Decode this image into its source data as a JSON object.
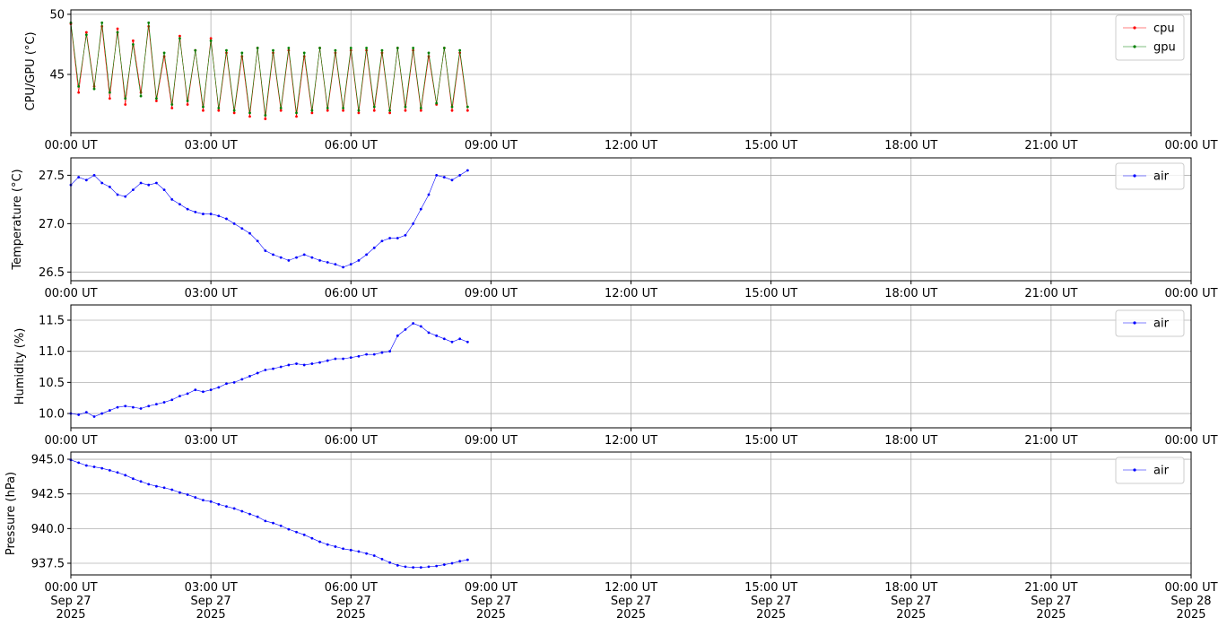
{
  "chart_data": [
    {
      "type": "line",
      "ylabel": "CPU/GPU (°C)",
      "x": [
        "2025-09-27T00:00",
        "2025-09-27T00:10",
        "2025-09-27T00:20",
        "2025-09-27T00:30",
        "2025-09-27T00:40",
        "2025-09-27T00:50",
        "2025-09-27T01:00",
        "2025-09-27T01:10",
        "2025-09-27T01:20",
        "2025-09-27T01:30",
        "2025-09-27T01:40",
        "2025-09-27T01:50",
        "2025-09-27T02:00",
        "2025-09-27T02:10",
        "2025-09-27T02:20",
        "2025-09-27T02:30",
        "2025-09-27T02:40",
        "2025-09-27T02:50",
        "2025-09-27T03:00",
        "2025-09-27T03:10",
        "2025-09-27T03:20",
        "2025-09-27T03:30",
        "2025-09-27T03:40",
        "2025-09-27T03:50",
        "2025-09-27T04:00",
        "2025-09-27T04:10",
        "2025-09-27T04:20",
        "2025-09-27T04:30",
        "2025-09-27T04:40",
        "2025-09-27T04:50",
        "2025-09-27T05:00",
        "2025-09-27T05:10",
        "2025-09-27T05:20",
        "2025-09-27T05:30",
        "2025-09-27T05:40",
        "2025-09-27T05:50",
        "2025-09-27T06:00",
        "2025-09-27T06:10",
        "2025-09-27T06:20",
        "2025-09-27T06:30",
        "2025-09-27T06:40",
        "2025-09-27T06:50",
        "2025-09-27T07:00",
        "2025-09-27T07:10",
        "2025-09-27T07:20",
        "2025-09-27T07:30",
        "2025-09-27T07:40",
        "2025-09-27T07:50",
        "2025-09-27T08:00",
        "2025-09-27T08:10",
        "2025-09-27T08:20",
        "2025-09-27T08:30"
      ],
      "series": [
        {
          "name": "cpu",
          "color": "#ff0000",
          "values": [
            49.2,
            43.5,
            48.5,
            44.0,
            49.0,
            43.0,
            48.8,
            42.5,
            47.8,
            43.5,
            49.0,
            42.8,
            46.5,
            42.2,
            48.2,
            42.5,
            47.0,
            42.0,
            48.0,
            42.0,
            46.8,
            41.8,
            46.5,
            41.5,
            47.2,
            41.3,
            46.8,
            42.0,
            47.0,
            41.5,
            46.5,
            41.8,
            47.2,
            42.0,
            46.8,
            42.0,
            47.0,
            41.8,
            47.0,
            42.0,
            46.8,
            41.8,
            47.2,
            42.0,
            47.0,
            42.0,
            46.5,
            42.5,
            47.2,
            42.0,
            46.8,
            42.0
          ]
        },
        {
          "name": "gpu",
          "color": "#008000",
          "values": [
            49.3,
            44.0,
            48.3,
            43.8,
            49.3,
            43.5,
            48.5,
            43.0,
            47.5,
            43.2,
            49.3,
            43.0,
            46.8,
            42.5,
            48.0,
            42.8,
            47.0,
            42.3,
            47.8,
            42.2,
            47.0,
            42.0,
            46.8,
            41.8,
            47.2,
            41.6,
            47.0,
            42.2,
            47.2,
            41.8,
            46.8,
            42.0,
            47.2,
            42.2,
            47.0,
            42.2,
            47.2,
            42.0,
            47.2,
            42.3,
            47.0,
            42.0,
            47.2,
            42.3,
            47.2,
            42.2,
            46.8,
            42.6,
            47.2,
            42.3,
            47.0,
            42.3
          ]
        }
      ],
      "xlim": [
        "2025-09-27T00:00",
        "2025-09-28T00:00"
      ],
      "xticks": [
        {
          "value": "2025-09-27T00:00",
          "label": "00:00 UT"
        },
        {
          "value": "2025-09-27T03:00",
          "label": "03:00 UT"
        },
        {
          "value": "2025-09-27T06:00",
          "label": "06:00 UT"
        },
        {
          "value": "2025-09-27T09:00",
          "label": "09:00 UT"
        },
        {
          "value": "2025-09-27T12:00",
          "label": "12:00 UT"
        },
        {
          "value": "2025-09-27T15:00",
          "label": "15:00 UT"
        },
        {
          "value": "2025-09-27T18:00",
          "label": "18:00 UT"
        },
        {
          "value": "2025-09-27T21:00",
          "label": "21:00 UT"
        },
        {
          "value": "2025-09-28T00:00",
          "label": "00:00 UT"
        }
      ],
      "ylim": [
        40.15,
        50.37
      ],
      "yticks": [
        45,
        50
      ],
      "grid": true,
      "legend": "upper right"
    },
    {
      "type": "line",
      "ylabel": "Temperature (°C)",
      "x": [
        "2025-09-27T00:00",
        "2025-09-27T00:10",
        "2025-09-27T00:20",
        "2025-09-27T00:30",
        "2025-09-27T00:40",
        "2025-09-27T00:50",
        "2025-09-27T01:00",
        "2025-09-27T01:10",
        "2025-09-27T01:20",
        "2025-09-27T01:30",
        "2025-09-27T01:40",
        "2025-09-27T01:50",
        "2025-09-27T02:00",
        "2025-09-27T02:10",
        "2025-09-27T02:20",
        "2025-09-27T02:30",
        "2025-09-27T02:40",
        "2025-09-27T02:50",
        "2025-09-27T03:00",
        "2025-09-27T03:10",
        "2025-09-27T03:20",
        "2025-09-27T03:30",
        "2025-09-27T03:40",
        "2025-09-27T03:50",
        "2025-09-27T04:00",
        "2025-09-27T04:10",
        "2025-09-27T04:20",
        "2025-09-27T04:30",
        "2025-09-27T04:40",
        "2025-09-27T04:50",
        "2025-09-27T05:00",
        "2025-09-27T05:10",
        "2025-09-27T05:20",
        "2025-09-27T05:30",
        "2025-09-27T05:40",
        "2025-09-27T05:50",
        "2025-09-27T06:00",
        "2025-09-27T06:10",
        "2025-09-27T06:20",
        "2025-09-27T06:30",
        "2025-09-27T06:40",
        "2025-09-27T06:50",
        "2025-09-27T07:00",
        "2025-09-27T07:10",
        "2025-09-27T07:20",
        "2025-09-27T07:30",
        "2025-09-27T07:40",
        "2025-09-27T07:50",
        "2025-09-27T08:00",
        "2025-09-27T08:10",
        "2025-09-27T08:20",
        "2025-09-27T08:30"
      ],
      "series": [
        {
          "name": "air",
          "color": "#0000ff",
          "values": [
            27.4,
            27.48,
            27.45,
            27.5,
            27.42,
            27.38,
            27.3,
            27.28,
            27.35,
            27.42,
            27.4,
            27.42,
            27.35,
            27.25,
            27.2,
            27.15,
            27.12,
            27.1,
            27.1,
            27.08,
            27.05,
            27.0,
            26.95,
            26.9,
            26.82,
            26.72,
            26.68,
            26.65,
            26.62,
            26.65,
            26.68,
            26.65,
            26.62,
            26.6,
            26.58,
            26.55,
            26.58,
            26.62,
            26.68,
            26.75,
            26.82,
            26.85,
            26.85,
            26.88,
            27.0,
            27.15,
            27.3,
            27.5,
            27.48,
            27.45,
            27.5,
            27.55
          ]
        }
      ],
      "xlim": [
        "2025-09-27T00:00",
        "2025-09-28T00:00"
      ],
      "xticks": [
        {
          "value": "2025-09-27T00:00",
          "label": "00:00 UT"
        },
        {
          "value": "2025-09-27T03:00",
          "label": "03:00 UT"
        },
        {
          "value": "2025-09-27T06:00",
          "label": "06:00 UT"
        },
        {
          "value": "2025-09-27T09:00",
          "label": "09:00 UT"
        },
        {
          "value": "2025-09-27T12:00",
          "label": "12:00 UT"
        },
        {
          "value": "2025-09-27T15:00",
          "label": "15:00 UT"
        },
        {
          "value": "2025-09-27T18:00",
          "label": "18:00 UT"
        },
        {
          "value": "2025-09-27T21:00",
          "label": "21:00 UT"
        },
        {
          "value": "2025-09-28T00:00",
          "label": "00:00 UT"
        }
      ],
      "ylim": [
        26.41,
        27.68
      ],
      "yticks": [
        26.5,
        {
          "value": 27,
          "label": "27.0"
        },
        27.5
      ],
      "grid": true,
      "legend": "upper right"
    },
    {
      "type": "line",
      "ylabel": "Humidity (%)",
      "x": [
        "2025-09-27T00:00",
        "2025-09-27T00:10",
        "2025-09-27T00:20",
        "2025-09-27T00:30",
        "2025-09-27T00:40",
        "2025-09-27T00:50",
        "2025-09-27T01:00",
        "2025-09-27T01:10",
        "2025-09-27T01:20",
        "2025-09-27T01:30",
        "2025-09-27T01:40",
        "2025-09-27T01:50",
        "2025-09-27T02:00",
        "2025-09-27T02:10",
        "2025-09-27T02:20",
        "2025-09-27T02:30",
        "2025-09-27T02:40",
        "2025-09-27T02:50",
        "2025-09-27T03:00",
        "2025-09-27T03:10",
        "2025-09-27T03:20",
        "2025-09-27T03:30",
        "2025-09-27T03:40",
        "2025-09-27T03:50",
        "2025-09-27T04:00",
        "2025-09-27T04:10",
        "2025-09-27T04:20",
        "2025-09-27T04:30",
        "2025-09-27T04:40",
        "2025-09-27T04:50",
        "2025-09-27T05:00",
        "2025-09-27T05:10",
        "2025-09-27T05:20",
        "2025-09-27T05:30",
        "2025-09-27T05:40",
        "2025-09-27T05:50",
        "2025-09-27T06:00",
        "2025-09-27T06:10",
        "2025-09-27T06:20",
        "2025-09-27T06:30",
        "2025-09-27T06:40",
        "2025-09-27T06:50",
        "2025-09-27T07:00",
        "2025-09-27T07:10",
        "2025-09-27T07:20",
        "2025-09-27T07:30",
        "2025-09-27T07:40",
        "2025-09-27T07:50",
        "2025-09-27T08:00",
        "2025-09-27T08:10",
        "2025-09-27T08:20",
        "2025-09-27T08:30"
      ],
      "series": [
        {
          "name": "air",
          "color": "#0000ff",
          "values": [
            10.0,
            9.98,
            10.02,
            9.95,
            10.0,
            10.05,
            10.1,
            10.12,
            10.1,
            10.08,
            10.12,
            10.15,
            10.18,
            10.22,
            10.28,
            10.32,
            10.38,
            10.35,
            10.38,
            10.42,
            10.48,
            10.5,
            10.55,
            10.6,
            10.65,
            10.7,
            10.72,
            10.75,
            10.78,
            10.8,
            10.78,
            10.8,
            10.82,
            10.85,
            10.88,
            10.88,
            10.9,
            10.92,
            10.95,
            10.95,
            10.98,
            11.0,
            11.25,
            11.35,
            11.45,
            11.4,
            11.3,
            11.25,
            11.2,
            11.15,
            11.2,
            11.15
          ]
        }
      ],
      "xlim": [
        "2025-09-27T00:00",
        "2025-09-28T00:00"
      ],
      "xticks": [
        {
          "value": "2025-09-27T00:00",
          "label": "00:00 UT"
        },
        {
          "value": "2025-09-27T03:00",
          "label": "03:00 UT"
        },
        {
          "value": "2025-09-27T06:00",
          "label": "06:00 UT"
        },
        {
          "value": "2025-09-27T09:00",
          "label": "09:00 UT"
        },
        {
          "value": "2025-09-27T12:00",
          "label": "12:00 UT"
        },
        {
          "value": "2025-09-27T15:00",
          "label": "15:00 UT"
        },
        {
          "value": "2025-09-27T18:00",
          "label": "18:00 UT"
        },
        {
          "value": "2025-09-27T21:00",
          "label": "21:00 UT"
        },
        {
          "value": "2025-09-28T00:00",
          "label": "00:00 UT"
        }
      ],
      "ylim": [
        9.77,
        11.745
      ],
      "yticks": [
        {
          "value": 10,
          "label": "10.0"
        },
        10.5,
        {
          "value": 11,
          "label": "11.0"
        },
        11.5
      ],
      "grid": true,
      "legend": "upper right"
    },
    {
      "type": "line",
      "ylabel": "Pressure (hPa)",
      "x": [
        "2025-09-27T00:00",
        "2025-09-27T00:10",
        "2025-09-27T00:20",
        "2025-09-27T00:30",
        "2025-09-27T00:40",
        "2025-09-27T00:50",
        "2025-09-27T01:00",
        "2025-09-27T01:10",
        "2025-09-27T01:20",
        "2025-09-27T01:30",
        "2025-09-27T01:40",
        "2025-09-27T01:50",
        "2025-09-27T02:00",
        "2025-09-27T02:10",
        "2025-09-27T02:20",
        "2025-09-27T02:30",
        "2025-09-27T02:40",
        "2025-09-27T02:50",
        "2025-09-27T03:00",
        "2025-09-27T03:10",
        "2025-09-27T03:20",
        "2025-09-27T03:30",
        "2025-09-27T03:40",
        "2025-09-27T03:50",
        "2025-09-27T04:00",
        "2025-09-27T04:10",
        "2025-09-27T04:20",
        "2025-09-27T04:30",
        "2025-09-27T04:40",
        "2025-09-27T04:50",
        "2025-09-27T05:00",
        "2025-09-27T05:10",
        "2025-09-27T05:20",
        "2025-09-27T05:30",
        "2025-09-27T05:40",
        "2025-09-27T05:50",
        "2025-09-27T06:00",
        "2025-09-27T06:10",
        "2025-09-27T06:20",
        "2025-09-27T06:30",
        "2025-09-27T06:40",
        "2025-09-27T06:50",
        "2025-09-27T07:00",
        "2025-09-27T07:10",
        "2025-09-27T07:20",
        "2025-09-27T07:30",
        "2025-09-27T07:40",
        "2025-09-27T07:50",
        "2025-09-27T08:00",
        "2025-09-27T08:10",
        "2025-09-27T08:20",
        "2025-09-27T08:30"
      ],
      "series": [
        {
          "name": "air",
          "color": "#0000ff",
          "values": [
            944.95,
            944.75,
            944.55,
            944.45,
            944.35,
            944.2,
            944.05,
            943.85,
            943.6,
            943.4,
            943.2,
            943.05,
            942.95,
            942.8,
            942.6,
            942.45,
            942.25,
            942.05,
            941.95,
            941.75,
            941.6,
            941.45,
            941.25,
            941.05,
            940.85,
            940.55,
            940.4,
            940.2,
            939.95,
            939.75,
            939.55,
            939.3,
            939.05,
            938.85,
            938.7,
            938.55,
            938.45,
            938.35,
            938.2,
            938.05,
            937.8,
            937.55,
            937.35,
            937.25,
            937.2,
            937.2,
            937.25,
            937.3,
            937.4,
            937.5,
            937.65,
            937.75
          ]
        }
      ],
      "xlim": [
        "2025-09-27T00:00",
        "2025-09-28T00:00"
      ],
      "xticks": [
        {
          "value": "2025-09-27T00:00",
          "label": "00:00 UT\nSep 27\n2025"
        },
        {
          "value": "2025-09-27T03:00",
          "label": "03:00 UT\nSep 27\n2025"
        },
        {
          "value": "2025-09-27T06:00",
          "label": "06:00 UT\nSep 27\n2025"
        },
        {
          "value": "2025-09-27T09:00",
          "label": "09:00 UT\nSep 27\n2025"
        },
        {
          "value": "2025-09-27T12:00",
          "label": "12:00 UT\nSep 27\n2025"
        },
        {
          "value": "2025-09-27T15:00",
          "label": "15:00 UT\nSep 27\n2025"
        },
        {
          "value": "2025-09-27T18:00",
          "label": "18:00 UT\nSep 27\n2025"
        },
        {
          "value": "2025-09-27T21:00",
          "label": "21:00 UT\nSep 27\n2025"
        },
        {
          "value": "2025-09-28T00:00",
          "label": "00:00 UT\nSep 28\n2025"
        }
      ],
      "ylim": [
        936.66,
        945.52
      ],
      "yticks": [
        937.5,
        {
          "value": 940,
          "label": "940.0"
        },
        942.5,
        {
          "value": 945,
          "label": "945.0"
        }
      ],
      "grid": true,
      "legend": "upper right"
    }
  ]
}
